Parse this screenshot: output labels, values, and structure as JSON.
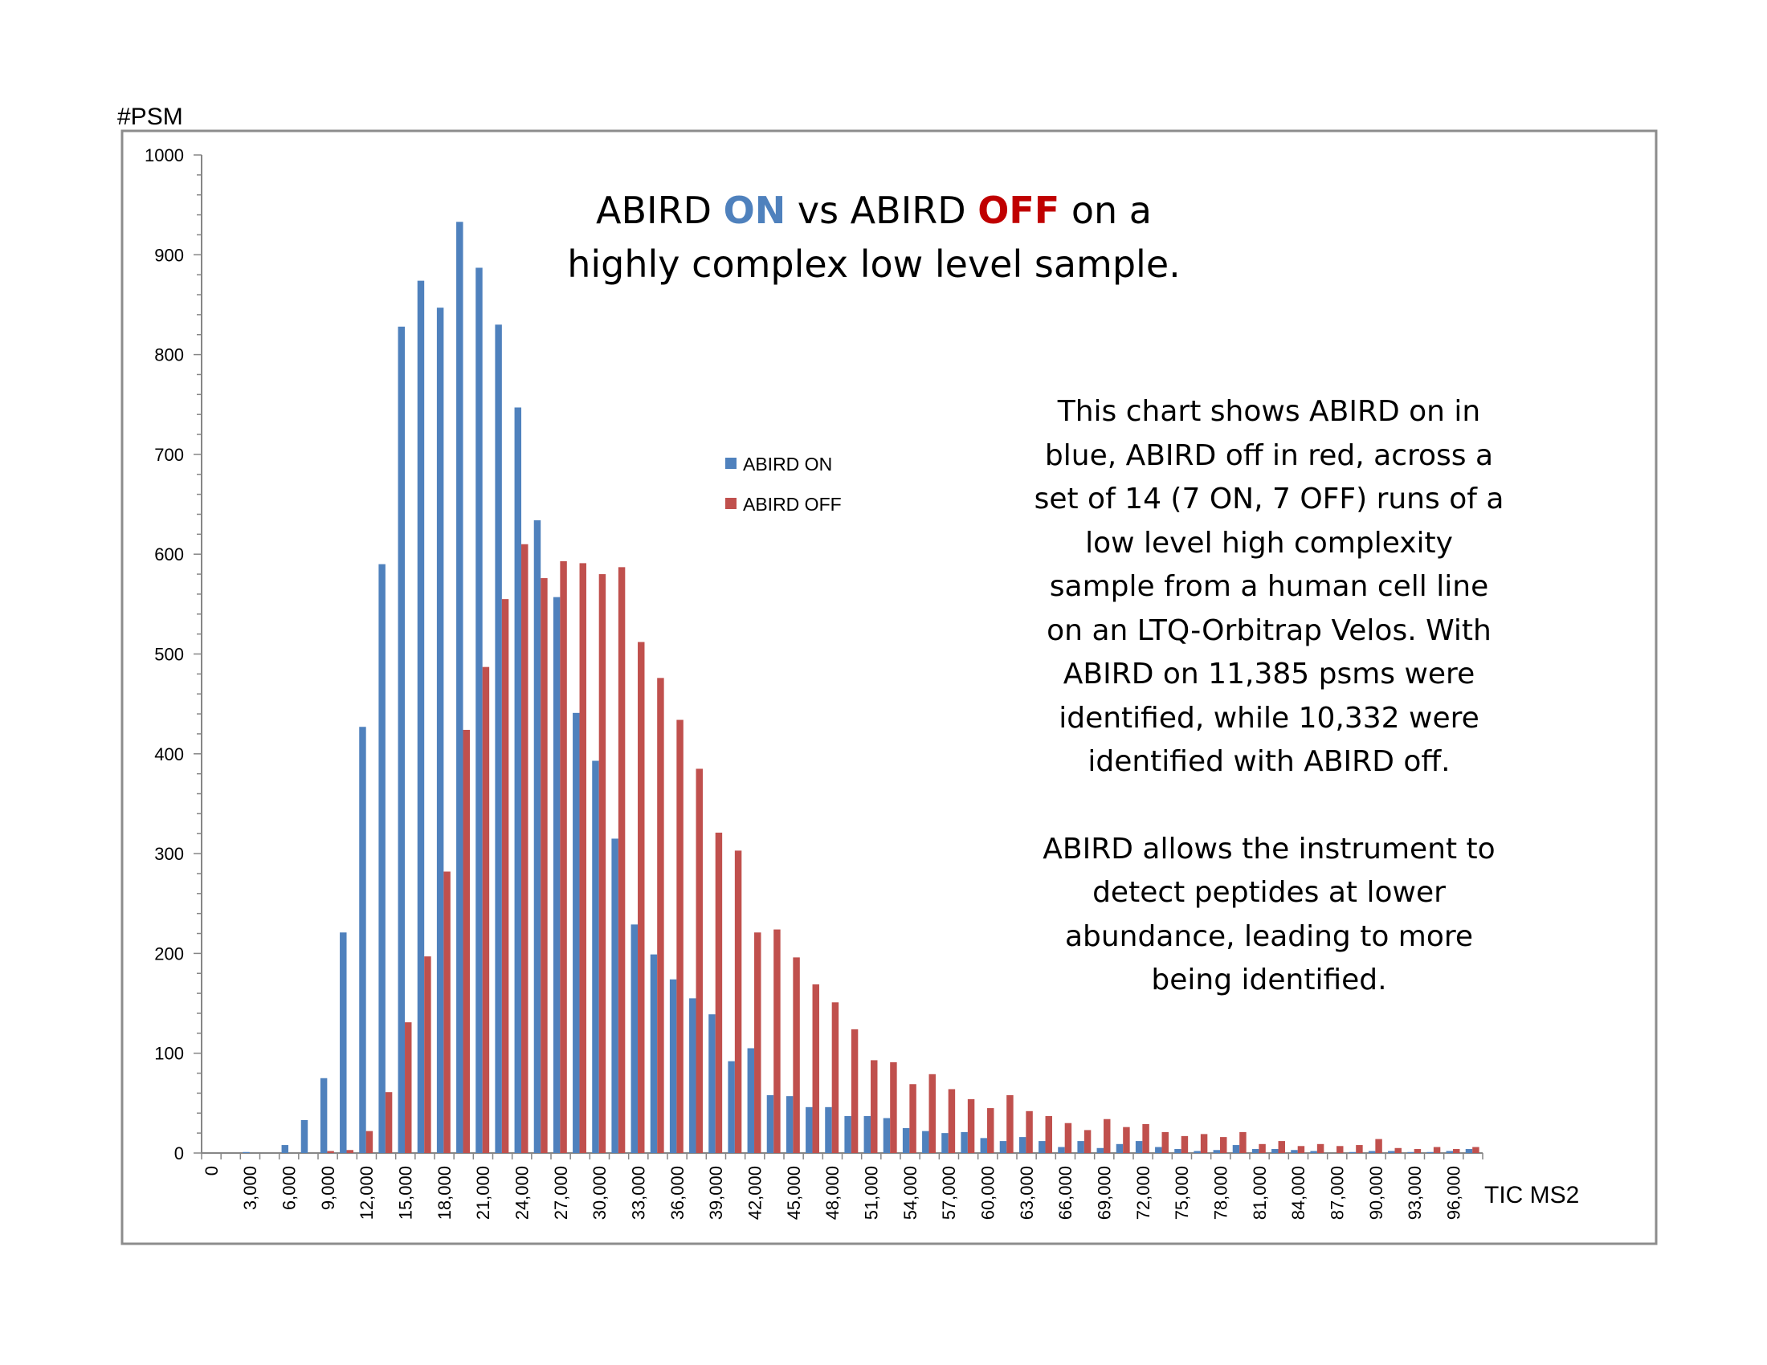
{
  "chart_data": {
    "type": "bar",
    "title": {
      "line1": [
        {
          "text": "ABIRD ",
          "color": "#000000"
        },
        {
          "text": "ON",
          "color": "#4F81BD",
          "bold": true
        },
        {
          "text": " vs ABIRD ",
          "color": "#000000"
        },
        {
          "text": "OFF",
          "color": "#C0000",
          "bold": true
        },
        {
          "text": " on a",
          "color": "#000000"
        }
      ],
      "line2": "highly complex low level sample."
    },
    "ylabel": "#PSM",
    "xlabel": "TIC MS2",
    "ylim": [
      0,
      1000
    ],
    "yticks": [
      0,
      100,
      200,
      300,
      400,
      500,
      600,
      700,
      800,
      900,
      1000
    ],
    "xtick_labels": [
      "0",
      "3,000",
      "6,000",
      "9,000",
      "12,000",
      "15,000",
      "18,000",
      "21,000",
      "24,000",
      "27,000",
      "30,000",
      "33,000",
      "36,000",
      "39,000",
      "42,000",
      "45,000",
      "48,000",
      "51,000",
      "54,000",
      "57,000",
      "60,000",
      "63,000",
      "66,000",
      "69,000",
      "72,000",
      "75,000",
      "78,000",
      "81,000",
      "84,000",
      "87,000",
      "90,000",
      "93,000",
      "96,000"
    ],
    "categories": [
      "0",
      "1,500",
      "3,000",
      "4,500",
      "6,000",
      "7,500",
      "9,000",
      "10,500",
      "12,000",
      "13,500",
      "15,000",
      "16,500",
      "18,000",
      "19,500",
      "21,000",
      "22,500",
      "24,000",
      "25,500",
      "27,000",
      "28,500",
      "30,000",
      "31,500",
      "33,000",
      "34,500",
      "36,000",
      "37,500",
      "39,000",
      "40,500",
      "42,000",
      "43,500",
      "45,000",
      "46,500",
      "48,000",
      "49,500",
      "51,000",
      "52,500",
      "54,000",
      "55,500",
      "57,000",
      "58,500",
      "60,000",
      "61,500",
      "63,000",
      "64,500",
      "66,000",
      "67,500",
      "69,000",
      "70,500",
      "72,000",
      "73,500",
      "75,000",
      "76,500",
      "78,000",
      "79,500",
      "81,000",
      "82,500",
      "84,000",
      "85,500",
      "87,000",
      "88,500",
      "90,000",
      "91,500",
      "93,000",
      "94,500",
      "96,000",
      "97,500"
    ],
    "series": [
      {
        "name": "ABIRD ON",
        "color": "#4F81BD",
        "values": [
          0,
          0,
          1,
          0,
          8,
          33,
          75,
          221,
          427,
          590,
          828,
          874,
          847,
          933,
          887,
          830,
          747,
          634,
          557,
          441,
          393,
          315,
          229,
          199,
          174,
          155,
          139,
          92,
          105,
          58,
          57,
          46,
          46,
          37,
          37,
          35,
          25,
          22,
          20,
          21,
          15,
          12,
          16,
          12,
          6,
          12,
          5,
          9,
          12,
          6,
          4,
          2,
          3,
          8,
          4,
          4,
          3,
          2,
          0,
          1,
          2,
          2,
          1,
          1,
          2,
          4
        ]
      },
      {
        "name": "ABIRD OFF",
        "color": "#C0504D",
        "values": [
          0,
          0,
          0,
          0,
          0,
          0,
          2,
          3,
          22,
          61,
          131,
          197,
          282,
          424,
          487,
          555,
          610,
          576,
          593,
          591,
          580,
          587,
          512,
          476,
          434,
          385,
          321,
          303,
          221,
          224,
          196,
          169,
          151,
          124,
          93,
          91,
          69,
          79,
          64,
          54,
          45,
          58,
          42,
          37,
          30,
          23,
          34,
          26,
          29,
          21,
          17,
          19,
          16,
          21,
          9,
          12,
          7,
          9,
          7,
          8,
          14,
          5,
          4,
          6,
          4,
          6
        ]
      }
    ],
    "legend": {
      "position": "center-left"
    },
    "grid": false
  },
  "annotation": {
    "paragraph1": [
      "This chart shows ABIRD on in",
      "blue, ABIRD off in red, across a",
      "set of 14 (7 ON, 7 OFF) runs of a",
      "low level high complexity",
      "sample from a human cell line",
      "on an LTQ-Orbitrap Velos. With",
      "ABIRD on 11,385 psms were",
      "identified, while 10,332 were",
      "identified with ABIRD off."
    ],
    "paragraph2": [
      "ABIRD allows the instrument to",
      "detect peptides at lower",
      "abundance, leading to more",
      "being identified."
    ]
  }
}
